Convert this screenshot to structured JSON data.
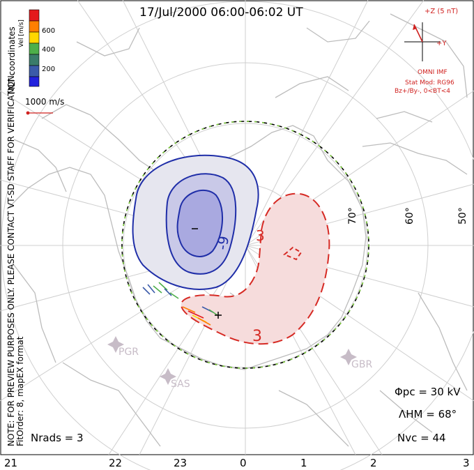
{
  "title": "17/Jul/2000 06:00-06:02 UT",
  "colorbar": {
    "label": "Vel [m/s]",
    "ticks": [
      "600",
      "400",
      "200"
    ],
    "colors": [
      "#e41a1c",
      "#ff7f00",
      "#ffd700",
      "#4daf4a",
      "#3a7c6a",
      "#3b5ba9",
      "#2222dd"
    ]
  },
  "reference_vector": "1000 m/s",
  "side_note": {
    "line1": "NOTE: FOR PREVIEW PURPOSES ONLY. PLEASE CONTACT VT-SD STAFF FOR VERIFICATION.",
    "line2": "FitOrder: 8, mapEX format"
  },
  "mlt_label": "MLT coordinates",
  "imf": {
    "z_label": "+Z (5 nT)",
    "y_label": "+Y",
    "source": "OMNI IMF",
    "stat_mod": "Stat Mod: RG96",
    "bz_by": "Bz+/By-, 0<BT<4"
  },
  "latitude_labels": [
    "70°",
    "60°",
    "50°"
  ],
  "contour_labels": {
    "neg_center": "−",
    "neg_ring": "-9",
    "pos_ring": "3",
    "pos_outer": "3"
  },
  "radars": [
    "PGR",
    "SAS",
    "GBR"
  ],
  "stats": {
    "phi_pc": "Φpc = 30 kV",
    "lambda_hm": "ΛHM = 68°",
    "n_vc": "Nvc = 44",
    "n_rads": "Nrads = 3"
  },
  "mlt_ticks": [
    "21",
    "22",
    "23",
    "0",
    "1",
    "2",
    "3"
  ],
  "colors": {
    "negative": "#1f2ea8",
    "positive": "#d62a24",
    "boundary_dash": "#7fd13b",
    "coast": "#bdbdbd",
    "grid": "#cccccc"
  }
}
